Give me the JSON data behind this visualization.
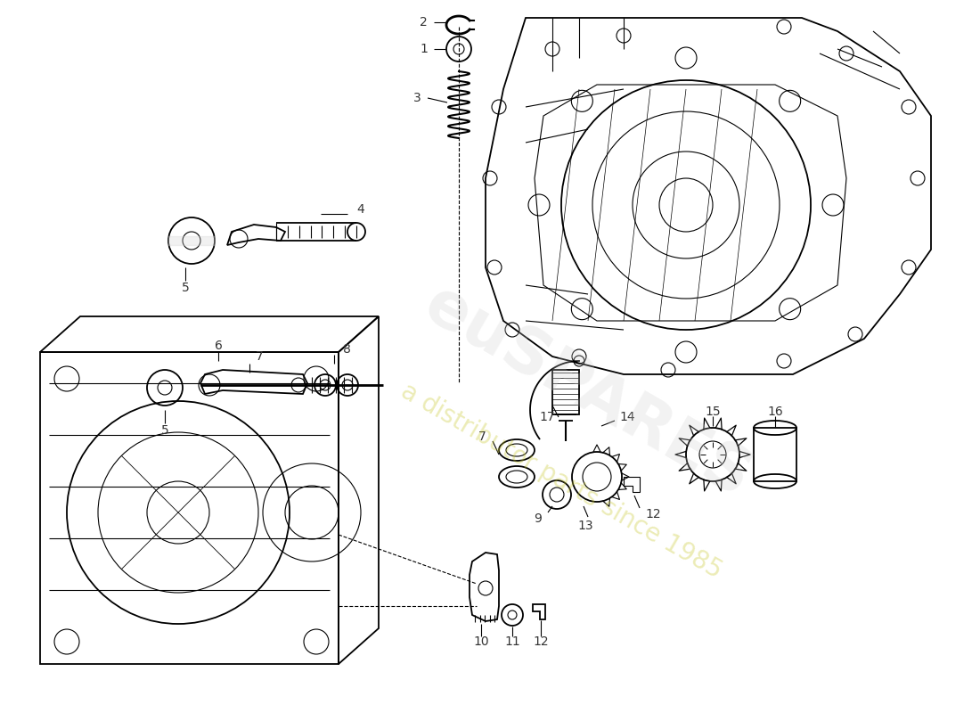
{
  "bg": "#ffffff",
  "lc": "#000000",
  "label_color": "#333333",
  "fs": 10,
  "watermark1": "euSPARES",
  "watermark2": "a distributor parts since 1985",
  "fig_w": 11.0,
  "fig_h": 8.0,
  "dpi": 100
}
